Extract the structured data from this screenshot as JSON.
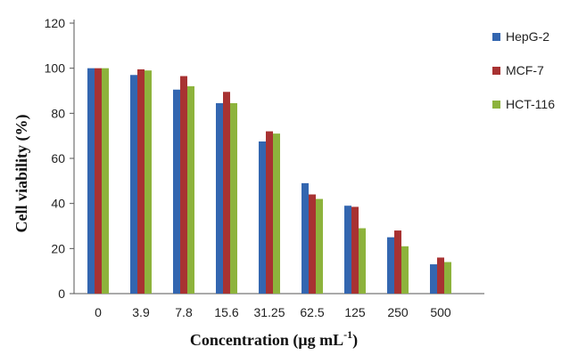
{
  "chart_data": {
    "type": "bar",
    "xlabel": "Concentration (μg mL",
    "xlabel_sup": "-1",
    "xlabel_tail": ")",
    "ylabel": "Cell viability (%)",
    "ylim": [
      0,
      120
    ],
    "yticks": [
      0,
      20,
      40,
      60,
      80,
      100,
      120
    ],
    "categories": [
      "0",
      "3.9",
      "7.8",
      "15.6",
      "31.25",
      "62.5",
      "125",
      "250",
      "500"
    ],
    "grid": false,
    "legend_position": "right",
    "series": [
      {
        "name": "HepG-2",
        "color": "#3366b0",
        "values": [
          100,
          97,
          90.5,
          84.5,
          67.5,
          49,
          39,
          25,
          13
        ]
      },
      {
        "name": "MCF-7",
        "color": "#a83232",
        "values": [
          100,
          99.5,
          96.5,
          89.5,
          72,
          44,
          38.5,
          28,
          16
        ]
      },
      {
        "name": "HCT-116",
        "color": "#8db33c",
        "values": [
          100,
          99,
          92,
          84.5,
          71,
          42,
          29,
          21,
          14
        ]
      }
    ]
  }
}
